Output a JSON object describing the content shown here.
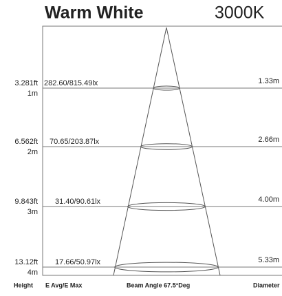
{
  "header": {
    "title": "Warm White",
    "cct": "3000K"
  },
  "rows": [
    {
      "feet": "3.281ft",
      "meters": "1m",
      "lux": "282.60/815.49lx",
      "diameter": "1.33m"
    },
    {
      "feet": "6.562ft",
      "meters": "2m",
      "lux": "70.65/203.87lx",
      "diameter": "2.66m"
    },
    {
      "feet": "9.843ft",
      "meters": "3m",
      "lux": "31.40/90.61lx",
      "diameter": "4.00m"
    },
    {
      "feet": "13.12ft",
      "meters": "4m",
      "lux": "17.66/50.97lx",
      "diameter": "5.33m"
    }
  ],
  "footer": {
    "height": "Height",
    "lux": "E Avg/E Max",
    "beam": "Beam Angle 67.5°Deg",
    "diameter": "Diameter"
  }
}
